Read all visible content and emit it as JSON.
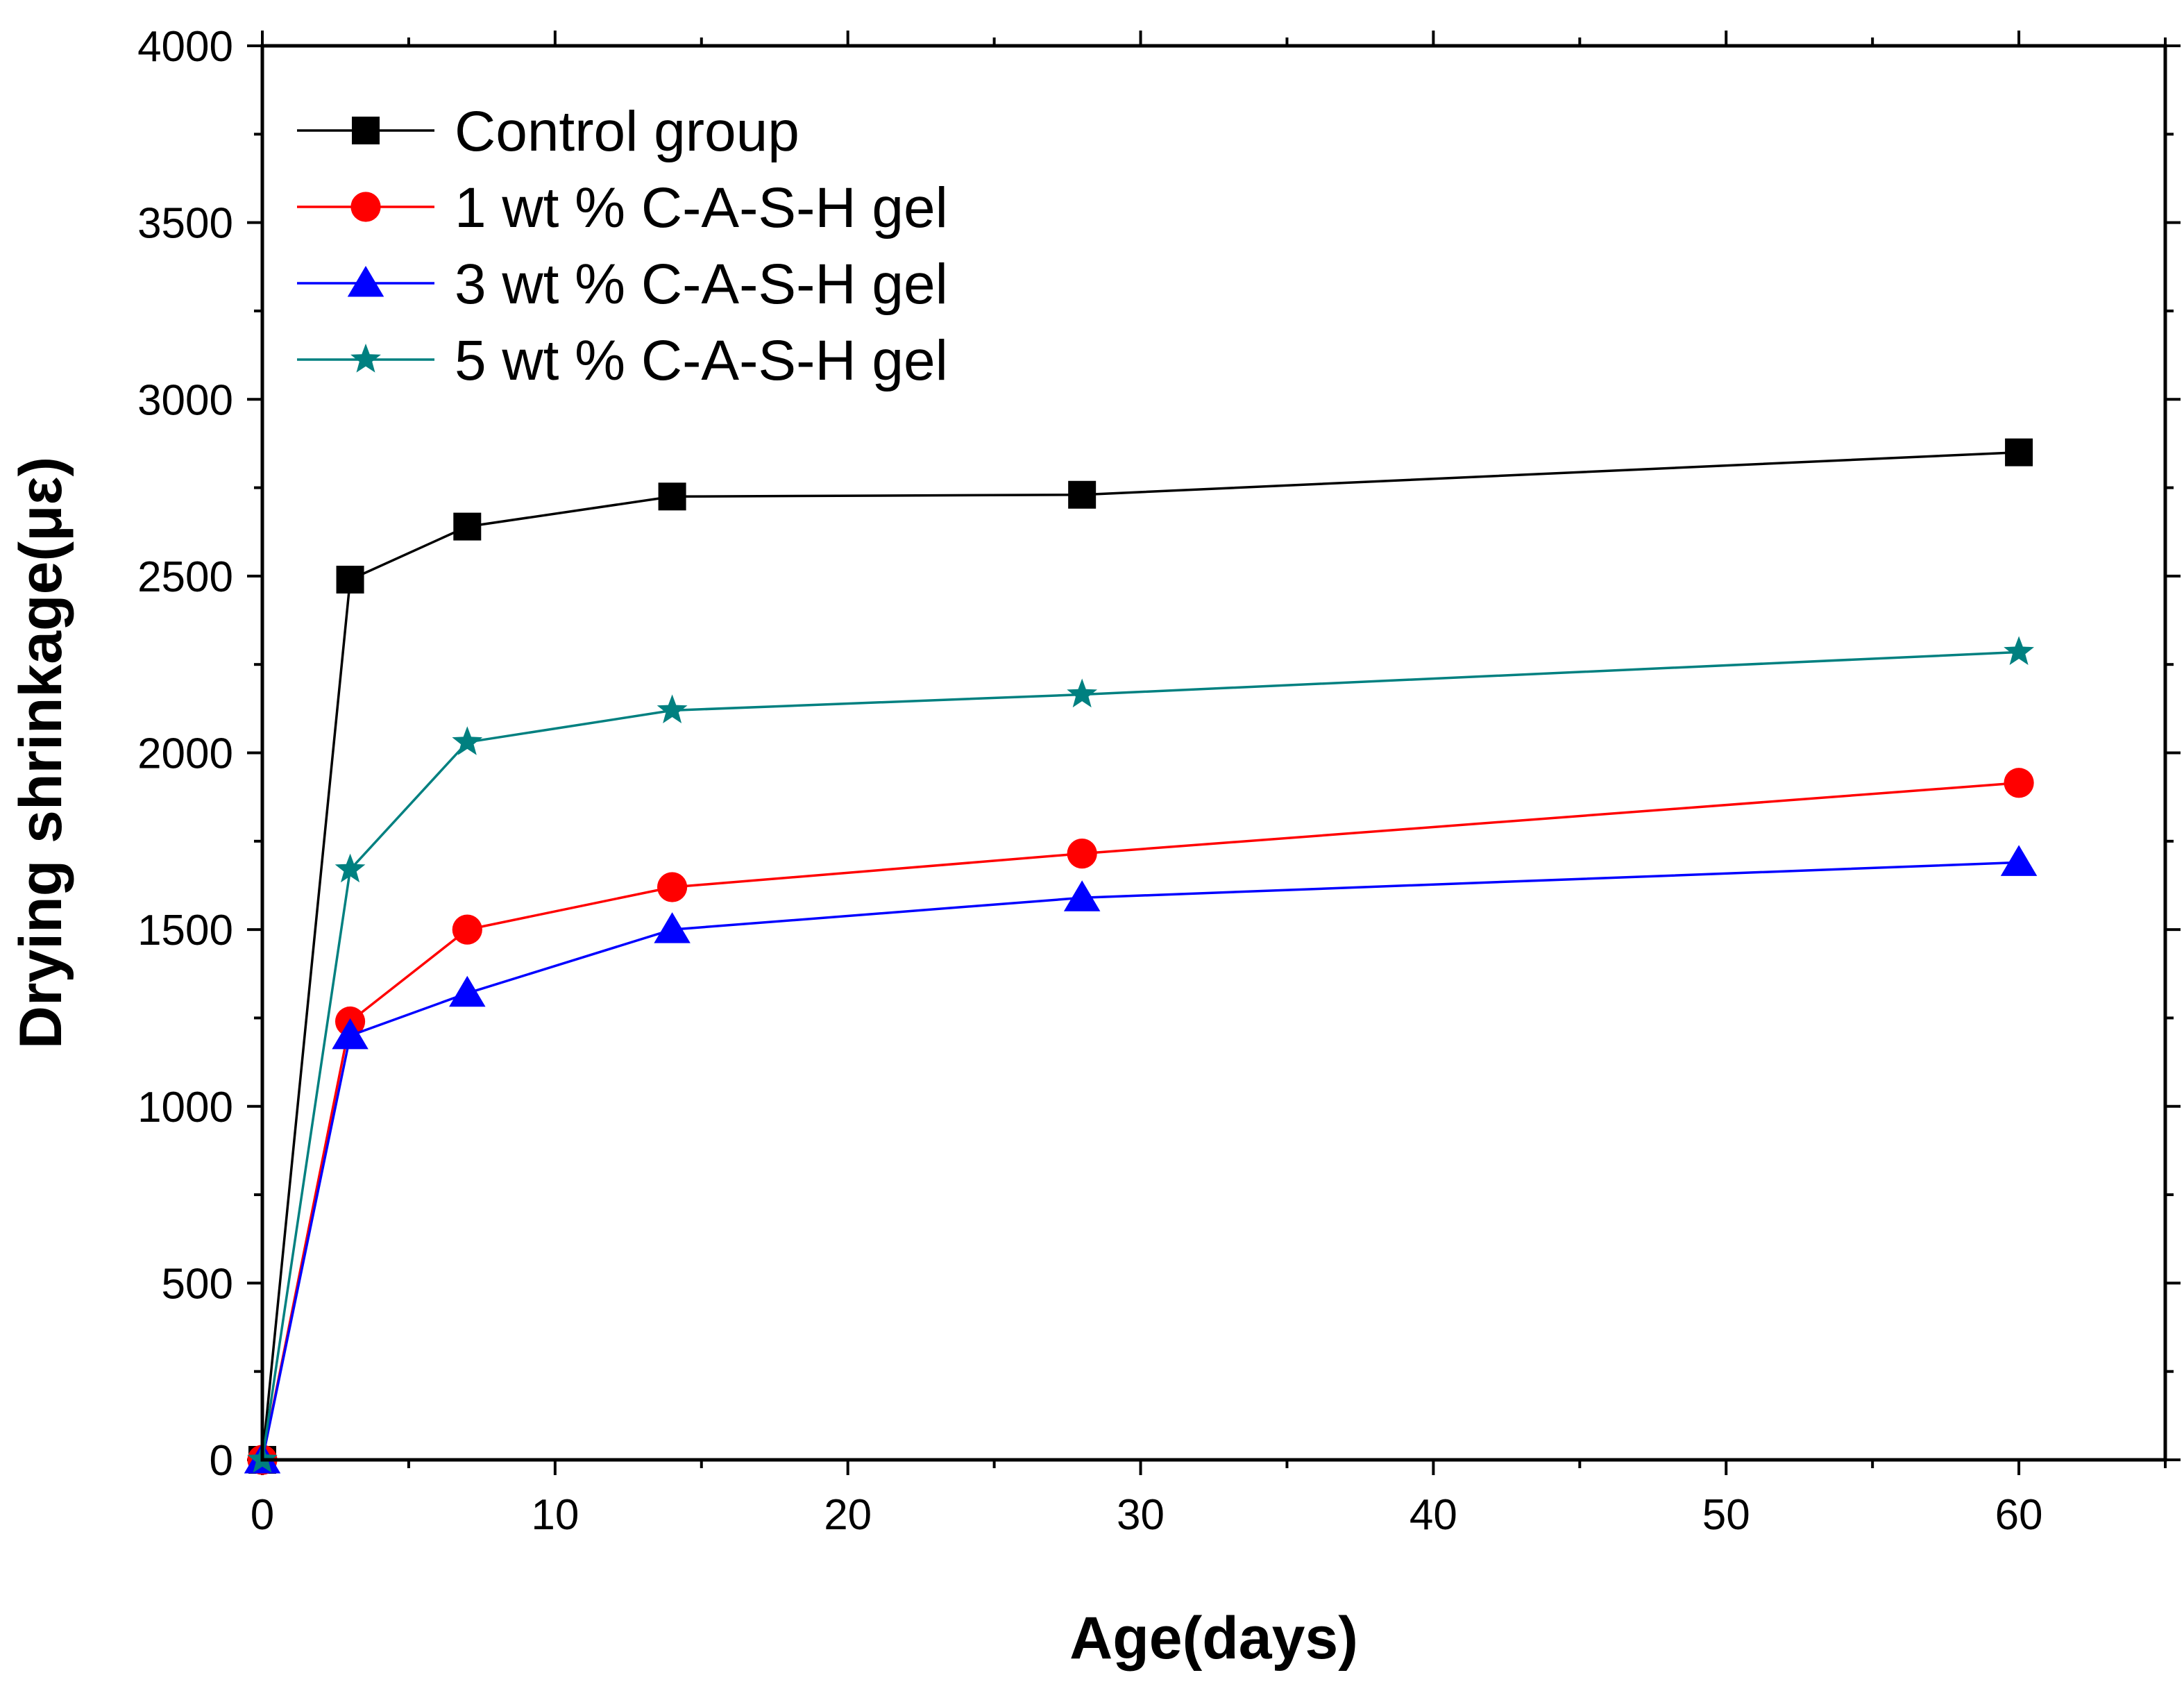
{
  "chart_data": {
    "type": "line",
    "title": "",
    "xlabel": "Age(days)",
    "ylabel": "Drying shrinkage(με)",
    "xlim": [
      0,
      65
    ],
    "ylim": [
      0,
      4000
    ],
    "xticks": [
      0,
      10,
      20,
      30,
      40,
      50,
      60
    ],
    "yticks": [
      0,
      500,
      1000,
      1500,
      2000,
      2500,
      3000,
      3500,
      4000
    ],
    "x_minor_step": 5,
    "y_minor_step": 250,
    "grid": false,
    "legend_position": "top-left",
    "x": [
      0,
      3,
      7,
      14,
      28,
      60
    ],
    "series": [
      {
        "name": "Control group",
        "color": "#000000",
        "marker": "square",
        "values": [
          0,
          2490,
          2640,
          2725,
          2730,
          2850
        ]
      },
      {
        "name": "1 wt % C-A-S-H gel",
        "color": "#ff0000",
        "marker": "circle",
        "values": [
          0,
          1240,
          1500,
          1620,
          1715,
          1915
        ]
      },
      {
        "name": "3 wt % C-A-S-H gel",
        "color": "#0000ff",
        "marker": "triangle",
        "values": [
          0,
          1200,
          1320,
          1500,
          1590,
          1690
        ]
      },
      {
        "name": "5 wt % C-A-S-H gel",
        "color": "#008080",
        "marker": "star",
        "values": [
          0,
          1670,
          2030,
          2120,
          2165,
          2285
        ]
      }
    ]
  }
}
